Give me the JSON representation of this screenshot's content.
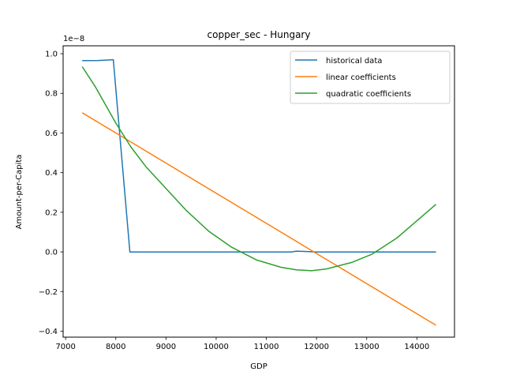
{
  "chart_data": {
    "type": "line",
    "title": "copper_sec - Hungary",
    "xlabel": "GDP",
    "ylabel": "Amount-per-Capita",
    "y_offset_label": "1e−8",
    "xlim": [
      6950,
      14750
    ],
    "ylim": [
      -0.43,
      1.04
    ],
    "x_ticks": [
      7000,
      8000,
      9000,
      10000,
      11000,
      12000,
      13000,
      14000
    ],
    "x_tick_labels": [
      "7000",
      "8000",
      "9000",
      "10000",
      "11000",
      "12000",
      "13000",
      "14000"
    ],
    "y_ticks": [
      -0.4,
      -0.2,
      0.0,
      0.2,
      0.4,
      0.6,
      0.8,
      1.0
    ],
    "y_tick_labels": [
      "−0.4",
      "−0.2",
      "0.0",
      "0.2",
      "0.4",
      "0.6",
      "0.8",
      "1.0"
    ],
    "grid": false,
    "legend_position": "top-right",
    "series": [
      {
        "name": "historical data",
        "color": "#1f77b4",
        "x": [
          7330,
          7650,
          7950,
          8280,
          11500,
          11600,
          12000,
          13000,
          14380
        ],
        "y": [
          0.965,
          0.966,
          0.97,
          0.0,
          0.0,
          0.004,
          0.0,
          0.0,
          0.0
        ]
      },
      {
        "name": "linear coefficients",
        "color": "#ff7f0e",
        "x": [
          7330,
          14380
        ],
        "y": [
          0.702,
          -0.37
        ]
      },
      {
        "name": "quadratic coefficients",
        "color": "#2ca02c",
        "x": [
          7330,
          7600,
          8000,
          8300,
          8600,
          9000,
          9400,
          9850,
          10300,
          10800,
          11300,
          11600,
          11900,
          12200,
          12700,
          13100,
          13600,
          14380
        ],
        "y": [
          0.935,
          0.83,
          0.65,
          0.53,
          0.43,
          0.32,
          0.21,
          0.105,
          0.025,
          -0.04,
          -0.078,
          -0.09,
          -0.095,
          -0.086,
          -0.053,
          -0.012,
          0.07,
          0.24
        ]
      }
    ]
  }
}
